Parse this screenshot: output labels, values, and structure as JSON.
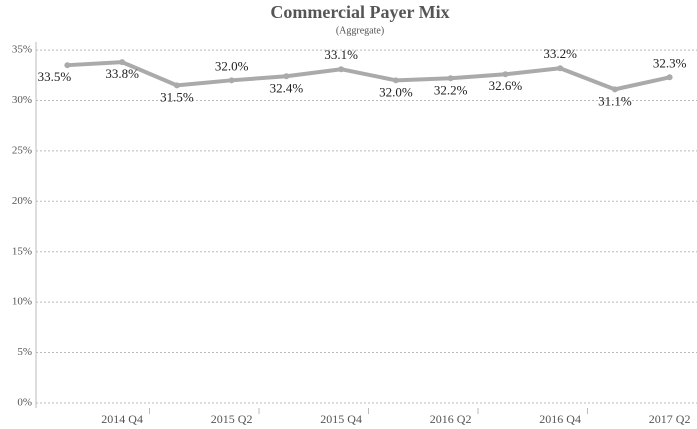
{
  "chart_data": {
    "type": "line",
    "title": "Commercial Payer Mix",
    "subtitle": "(Aggregate)",
    "categories": [
      null,
      "2014 Q4",
      null,
      "2015 Q2",
      null,
      "2015 Q4",
      null,
      "2016 Q2",
      null,
      "2016 Q4",
      null,
      "2017 Q2"
    ],
    "series": [
      {
        "name": "Commercial",
        "color": "#aaaaaa",
        "values": [
          33.5,
          33.8,
          31.5,
          32.0,
          32.4,
          33.1,
          32.0,
          32.2,
          32.6,
          33.2,
          31.1,
          32.3
        ],
        "value_labels": [
          "33.5%",
          "33.8%",
          "31.5%",
          "32.0%",
          "32.4%",
          "33.1%",
          "32.0%",
          "32.2%",
          "32.6%",
          "33.2%",
          "31.1%",
          "32.3%"
        ]
      }
    ],
    "ylim": [
      -0.5,
      35.8
    ],
    "yticks": [
      {
        "value": 0,
        "label": "0%"
      },
      {
        "value": 5,
        "label": "5%"
      },
      {
        "value": 10,
        "label": "10%"
      },
      {
        "value": 15,
        "label": "15%"
      },
      {
        "value": 20,
        "label": "20%"
      },
      {
        "value": 25,
        "label": "25%"
      },
      {
        "value": 30,
        "label": "30%"
      },
      {
        "value": 35,
        "label": "35%"
      }
    ],
    "grid": true
  }
}
